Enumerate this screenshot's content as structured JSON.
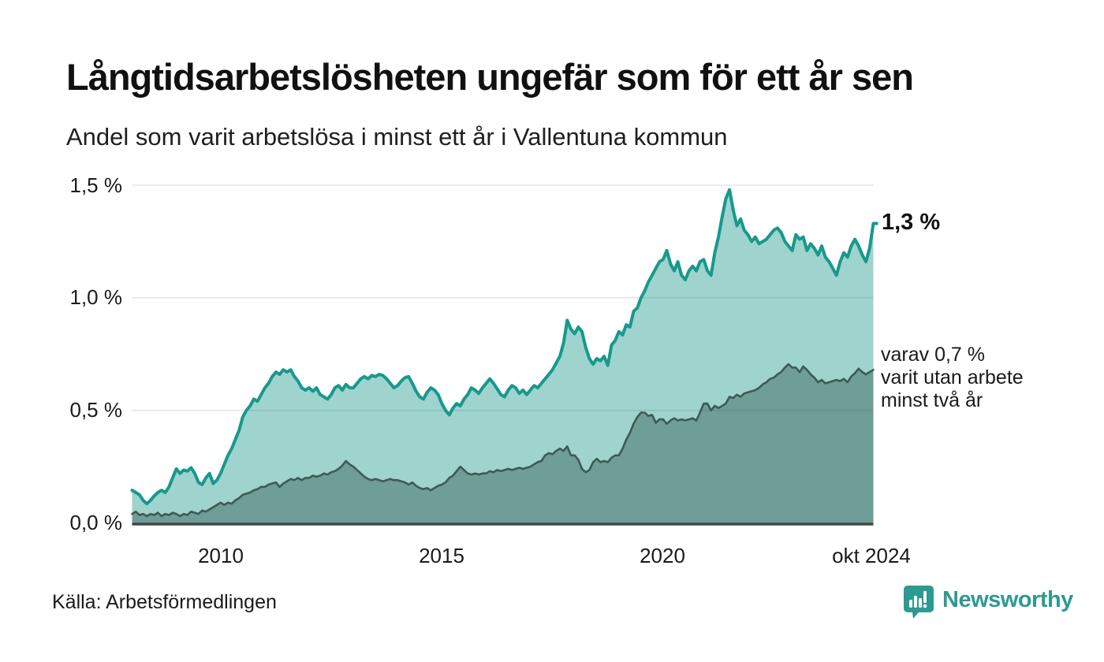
{
  "header": {
    "title": "Långtidsarbetslösheten ungefär som för ett år sen",
    "subtitle": "Andel som varit arbetslösa i minst ett år i Vallentuna kommun"
  },
  "chart_data": {
    "type": "area",
    "title": "Långtidsarbetslösheten ungefär som för ett år sen",
    "subtitle": "Andel som varit arbetslösa i minst ett år i Vallentuna kommun",
    "unit": "%",
    "x_start": "2008-01",
    "x_end": "2024-10",
    "ylim": [
      0,
      1.5
    ],
    "grid": true,
    "y_ticks": [
      {
        "label": "0,0 %",
        "value": 0.0
      },
      {
        "label": "0,5 %",
        "value": 0.5
      },
      {
        "label": "1,0 %",
        "value": 1.0
      },
      {
        "label": "1,5 %",
        "value": 1.5
      }
    ],
    "x_ticks": [
      {
        "label": "2010",
        "month_index": 24
      },
      {
        "label": "2015",
        "month_index": 84
      },
      {
        "label": "2020",
        "month_index": 144
      },
      {
        "label": "okt 2024",
        "month_index": 201
      }
    ],
    "series": [
      {
        "name": "Andel arbetslösa minst ett år",
        "line_color": "#17998c",
        "fill_color": "#9ed3ce",
        "latest_label": "1,3 %",
        "values": [
          0.145,
          0.135,
          0.125,
          0.1,
          0.085,
          0.1,
          0.12,
          0.135,
          0.145,
          0.135,
          0.16,
          0.2,
          0.24,
          0.22,
          0.235,
          0.23,
          0.245,
          0.22,
          0.18,
          0.17,
          0.2,
          0.22,
          0.175,
          0.19,
          0.22,
          0.26,
          0.3,
          0.33,
          0.37,
          0.41,
          0.47,
          0.5,
          0.52,
          0.55,
          0.54,
          0.57,
          0.6,
          0.62,
          0.65,
          0.67,
          0.66,
          0.68,
          0.67,
          0.68,
          0.65,
          0.63,
          0.6,
          0.59,
          0.6,
          0.585,
          0.6,
          0.57,
          0.56,
          0.55,
          0.57,
          0.6,
          0.61,
          0.59,
          0.615,
          0.6,
          0.6,
          0.62,
          0.64,
          0.65,
          0.64,
          0.655,
          0.65,
          0.66,
          0.655,
          0.64,
          0.62,
          0.6,
          0.61,
          0.63,
          0.645,
          0.65,
          0.62,
          0.585,
          0.56,
          0.55,
          0.58,
          0.6,
          0.59,
          0.57,
          0.53,
          0.5,
          0.48,
          0.51,
          0.53,
          0.52,
          0.55,
          0.57,
          0.6,
          0.59,
          0.575,
          0.6,
          0.62,
          0.64,
          0.62,
          0.595,
          0.57,
          0.56,
          0.59,
          0.61,
          0.6,
          0.575,
          0.59,
          0.57,
          0.59,
          0.61,
          0.6,
          0.62,
          0.64,
          0.66,
          0.68,
          0.71,
          0.74,
          0.8,
          0.9,
          0.86,
          0.84,
          0.87,
          0.85,
          0.78,
          0.73,
          0.705,
          0.73,
          0.72,
          0.74,
          0.7,
          0.79,
          0.81,
          0.85,
          0.835,
          0.88,
          0.87,
          0.94,
          0.955,
          1.0,
          1.03,
          1.07,
          1.1,
          1.13,
          1.16,
          1.17,
          1.21,
          1.15,
          1.12,
          1.16,
          1.1,
          1.08,
          1.12,
          1.14,
          1.12,
          1.16,
          1.17,
          1.12,
          1.1,
          1.2,
          1.27,
          1.36,
          1.44,
          1.48,
          1.39,
          1.32,
          1.35,
          1.3,
          1.28,
          1.25,
          1.27,
          1.24,
          1.25,
          1.26,
          1.28,
          1.3,
          1.31,
          1.29,
          1.25,
          1.23,
          1.21,
          1.28,
          1.26,
          1.27,
          1.21,
          1.24,
          1.22,
          1.19,
          1.23,
          1.18,
          1.16,
          1.13,
          1.1,
          1.16,
          1.2,
          1.18,
          1.23,
          1.26,
          1.23,
          1.19,
          1.16,
          1.22,
          1.33
        ]
      },
      {
        "name": "varav varit utan arbete minst två år",
        "line_color": "#3d5a55",
        "fill_color": "#6f9d97",
        "latest_label": "0,7 %",
        "values": [
          0.04,
          0.05,
          0.035,
          0.04,
          0.03,
          0.04,
          0.035,
          0.045,
          0.03,
          0.04,
          0.035,
          0.045,
          0.04,
          0.03,
          0.04,
          0.035,
          0.05,
          0.045,
          0.04,
          0.055,
          0.05,
          0.06,
          0.07,
          0.08,
          0.09,
          0.08,
          0.09,
          0.085,
          0.1,
          0.11,
          0.125,
          0.13,
          0.135,
          0.145,
          0.15,
          0.16,
          0.16,
          0.17,
          0.175,
          0.18,
          0.16,
          0.175,
          0.185,
          0.195,
          0.19,
          0.2,
          0.19,
          0.2,
          0.2,
          0.21,
          0.205,
          0.21,
          0.22,
          0.215,
          0.225,
          0.23,
          0.24,
          0.255,
          0.275,
          0.26,
          0.25,
          0.235,
          0.22,
          0.205,
          0.195,
          0.19,
          0.195,
          0.19,
          0.185,
          0.19,
          0.195,
          0.19,
          0.19,
          0.185,
          0.18,
          0.17,
          0.18,
          0.165,
          0.155,
          0.15,
          0.155,
          0.145,
          0.155,
          0.165,
          0.17,
          0.18,
          0.2,
          0.21,
          0.23,
          0.25,
          0.235,
          0.22,
          0.215,
          0.22,
          0.215,
          0.22,
          0.22,
          0.23,
          0.225,
          0.235,
          0.23,
          0.235,
          0.24,
          0.235,
          0.24,
          0.245,
          0.24,
          0.245,
          0.25,
          0.26,
          0.27,
          0.275,
          0.3,
          0.31,
          0.305,
          0.32,
          0.33,
          0.32,
          0.34,
          0.3,
          0.3,
          0.28,
          0.24,
          0.225,
          0.235,
          0.27,
          0.285,
          0.27,
          0.275,
          0.27,
          0.29,
          0.3,
          0.3,
          0.33,
          0.37,
          0.4,
          0.44,
          0.47,
          0.49,
          0.49,
          0.475,
          0.48,
          0.445,
          0.46,
          0.46,
          0.44,
          0.455,
          0.465,
          0.455,
          0.46,
          0.455,
          0.46,
          0.465,
          0.455,
          0.49,
          0.53,
          0.53,
          0.5,
          0.52,
          0.51,
          0.52,
          0.53,
          0.56,
          0.555,
          0.57,
          0.56,
          0.575,
          0.58,
          0.585,
          0.59,
          0.6,
          0.615,
          0.625,
          0.64,
          0.645,
          0.66,
          0.67,
          0.69,
          0.705,
          0.69,
          0.69,
          0.67,
          0.695,
          0.68,
          0.66,
          0.645,
          0.625,
          0.635,
          0.62,
          0.625,
          0.63,
          0.635,
          0.63,
          0.64,
          0.625,
          0.65,
          0.665,
          0.685,
          0.67,
          0.66,
          0.67,
          0.68
        ]
      }
    ],
    "annotations": {
      "latest_total": "1,3 %",
      "secondary_line1": "varav 0,7 %",
      "secondary_line2": "varit utan arbete",
      "secondary_line3": "minst två år"
    }
  },
  "axis": {
    "y0": "0,0 %",
    "y1": "0,5 %",
    "y2": "1,0 %",
    "y3": "1,5 %",
    "x0": "2010",
    "x1": "2015",
    "x2": "2020",
    "x3": "okt 2024"
  },
  "footer": {
    "source": "Källa: Arbetsförmedlingen",
    "logo_text": "Newsworthy"
  },
  "colors": {
    "brand_teal": "#2d9a92",
    "line_total": "#17998c",
    "fill_total": "#9ed3ce",
    "line_two_year": "#3d5a55",
    "fill_two_year": "#6f9d97",
    "gridline": "#e3e3e3",
    "axis_line": "#3f4a49"
  }
}
